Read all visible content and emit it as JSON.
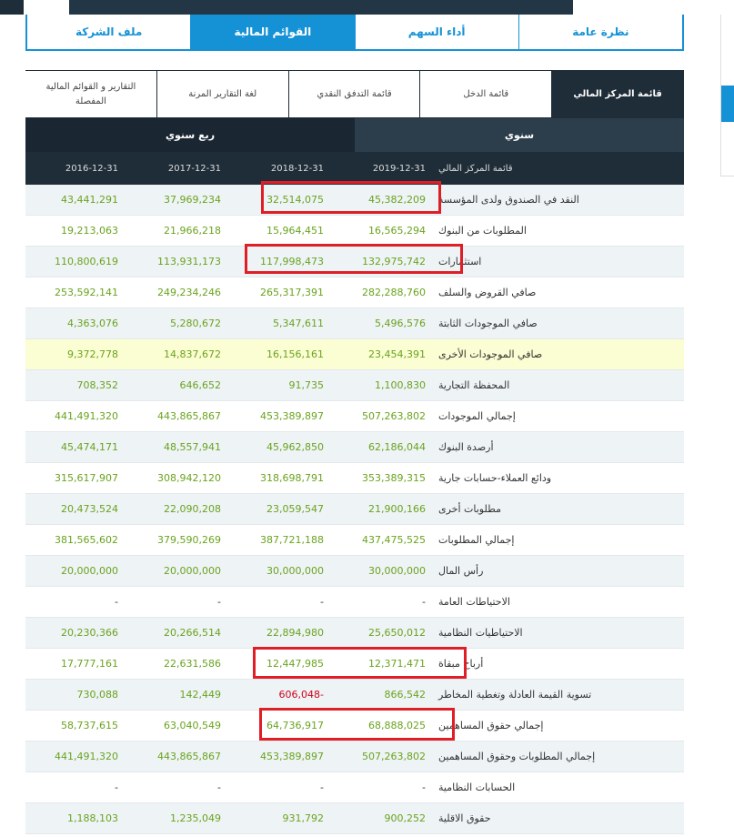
{
  "main_tabs": [
    {
      "label": "نظرة عامة",
      "active": false
    },
    {
      "label": "أداء السهم",
      "active": false
    },
    {
      "label": "القوائم المالية",
      "active": true
    },
    {
      "label": "ملف الشركة",
      "active": false
    }
  ],
  "sub_tabs": [
    {
      "label": "قائمة المركز المالي",
      "active": true
    },
    {
      "label": "قائمة الدخل",
      "active": false
    },
    {
      "label": "قائمة التدفق النقدي",
      "active": false
    },
    {
      "label": "لغة التقارير المرنة",
      "active": false
    },
    {
      "label": "التقارير و القوائم المالية المفصلة",
      "active": false
    }
  ],
  "periods": [
    {
      "label": "سنوي",
      "active": true
    },
    {
      "label": "ربع سنوي",
      "active": false
    }
  ],
  "table": {
    "header_label": "قائمة المركز المالي",
    "columns": [
      "2019-12-31",
      "2018-12-31",
      "2017-12-31",
      "2016-12-31"
    ],
    "rows": [
      {
        "label": "النقد في الصندوق ولدى المؤسسة",
        "values": [
          "45,382,209",
          "32,514,075",
          "37,969,234",
          "43,441,291"
        ]
      },
      {
        "label": "المطلوبات من البنوك",
        "values": [
          "16,565,294",
          "15,964,451",
          "21,966,218",
          "19,213,063"
        ]
      },
      {
        "label": "استثمارات",
        "values": [
          "132,975,742",
          "117,998,473",
          "113,931,173",
          "110,800,619"
        ]
      },
      {
        "label": "صافي القروض والسلف",
        "values": [
          "282,288,760",
          "265,317,391",
          "249,234,246",
          "253,592,141"
        ]
      },
      {
        "label": "صافي الموجودات الثابتة",
        "values": [
          "5,496,576",
          "5,347,611",
          "5,280,672",
          "4,363,076"
        ]
      },
      {
        "label": "صافي الموجودات الأخرى",
        "values": [
          "23,454,391",
          "16,156,161",
          "14,837,672",
          "9,372,778"
        ]
      },
      {
        "label": "المحفظة التجارية",
        "values": [
          "1,100,830",
          "91,735",
          "646,652",
          "708,352"
        ]
      },
      {
        "label": "إجمالي الموجودات",
        "values": [
          "507,263,802",
          "453,389,897",
          "443,865,867",
          "441,491,320"
        ]
      },
      {
        "label": "أرصدة البنوك",
        "values": [
          "62,186,044",
          "45,962,850",
          "48,557,941",
          "45,474,171"
        ]
      },
      {
        "label": "ودائع العملاء-حسابات جارية",
        "values": [
          "353,389,315",
          "318,698,791",
          "308,942,120",
          "315,617,907"
        ]
      },
      {
        "label": "مطلوبات أخرى",
        "values": [
          "21,900,166",
          "23,059,547",
          "22,090,208",
          "20,473,524"
        ]
      },
      {
        "label": "إجمالي المطلوبات",
        "values": [
          "437,475,525",
          "387,721,188",
          "379,590,269",
          "381,565,602"
        ]
      },
      {
        "label": "رأس المال",
        "values": [
          "30,000,000",
          "30,000,000",
          "20,000,000",
          "20,000,000"
        ]
      },
      {
        "label": "الاحتياطات العامة",
        "values": [
          "-",
          "-",
          "-",
          "-"
        ]
      },
      {
        "label": "الاحتياطيات النظامية",
        "values": [
          "25,650,012",
          "22,894,980",
          "20,266,514",
          "20,230,366"
        ]
      },
      {
        "label": "أرباح مبقاة",
        "values": [
          "12,371,471",
          "12,447,985",
          "22,631,586",
          "17,777,161"
        ]
      },
      {
        "label": "تسوية القيمة العادلة وتغطية المخاطر",
        "values": [
          "866,542",
          "606,048-",
          "142,449",
          "730,088"
        ]
      },
      {
        "label": "إجمالي حقوق المساهمين",
        "values": [
          "68,888,025",
          "64,736,917",
          "63,040,549",
          "58,737,615"
        ]
      },
      {
        "label": "إجمالي المطلوبات وحقوق المساهمين",
        "values": [
          "507,263,802",
          "453,389,897",
          "443,865,867",
          "441,491,320"
        ]
      },
      {
        "label": "الحسابات النظامية",
        "values": [
          "-",
          "-",
          "-",
          "-"
        ]
      },
      {
        "label": "حقوق الاقلية",
        "values": [
          "900,252",
          "931,792",
          "1,235,049",
          "1,188,103"
        ]
      }
    ]
  },
  "colors": {
    "accent": "#1592d6",
    "header_dark": "#1f2d38",
    "value_green": "#6aa31e",
    "negative_red": "#d0021b",
    "highlight_row": "#fbfdd2",
    "annotation_red": "#e01e26"
  }
}
